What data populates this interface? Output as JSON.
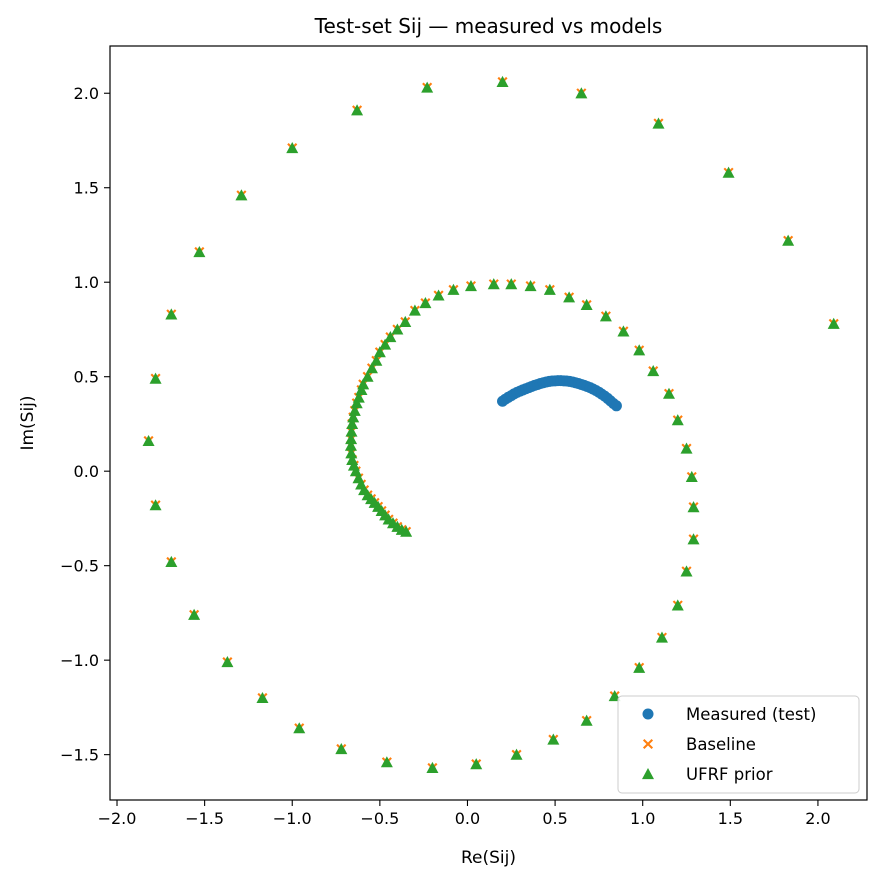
{
  "chart_data": {
    "type": "scatter",
    "title": "Test-set Sij — measured vs models",
    "xlabel": "Re(Sij)",
    "ylabel": "Im(Sij)",
    "xlim": [
      -2.04,
      2.28
    ],
    "ylim": [
      -1.74,
      2.25
    ],
    "xticks": [
      -2.0,
      -1.5,
      -1.0,
      -0.5,
      0.0,
      0.5,
      1.0,
      1.5,
      2.0
    ],
    "xtick_labels": [
      "−2.0",
      "−1.5",
      "−1.0",
      "−0.5",
      "0.0",
      "0.5",
      "1.0",
      "1.5",
      "2.0"
    ],
    "yticks": [
      -1.5,
      -1.0,
      -0.5,
      0.0,
      0.5,
      1.0,
      1.5,
      2.0
    ],
    "ytick_labels": [
      "−1.5",
      "−1.0",
      "−0.5",
      "0.0",
      "0.5",
      "1.0",
      "1.5",
      "2.0"
    ],
    "grid": false,
    "legend_position": "lower-right",
    "series": [
      {
        "name": "Measured (test)",
        "marker": "circle",
        "color": "#1f77b4",
        "points": [
          [
            0.2,
            0.37
          ],
          [
            0.216,
            0.381
          ],
          [
            0.233,
            0.391
          ],
          [
            0.25,
            0.4
          ],
          [
            0.266,
            0.409
          ],
          [
            0.283,
            0.417
          ],
          [
            0.3,
            0.424
          ],
          [
            0.316,
            0.43
          ],
          [
            0.333,
            0.436
          ],
          [
            0.35,
            0.442
          ],
          [
            0.366,
            0.448
          ],
          [
            0.383,
            0.454
          ],
          [
            0.4,
            0.459
          ],
          [
            0.416,
            0.464
          ],
          [
            0.433,
            0.468
          ],
          [
            0.45,
            0.472
          ],
          [
            0.466,
            0.475
          ],
          [
            0.483,
            0.477
          ],
          [
            0.5,
            0.478
          ],
          [
            0.516,
            0.479
          ],
          [
            0.533,
            0.479
          ],
          [
            0.55,
            0.478
          ],
          [
            0.566,
            0.477
          ],
          [
            0.583,
            0.475
          ],
          [
            0.6,
            0.472
          ],
          [
            0.616,
            0.468
          ],
          [
            0.633,
            0.464
          ],
          [
            0.65,
            0.459
          ],
          [
            0.666,
            0.454
          ],
          [
            0.683,
            0.448
          ],
          [
            0.7,
            0.442
          ],
          [
            0.716,
            0.435
          ],
          [
            0.733,
            0.427
          ],
          [
            0.75,
            0.418
          ],
          [
            0.766,
            0.408
          ],
          [
            0.783,
            0.397
          ],
          [
            0.8,
            0.385
          ],
          [
            0.816,
            0.372
          ],
          [
            0.833,
            0.358
          ],
          [
            0.85,
            0.346
          ]
        ]
      },
      {
        "name": "Baseline",
        "marker": "x",
        "color": "#ff7f0e",
        "points": [
          [
            -0.35,
            -0.32
          ],
          [
            -0.375,
            -0.31
          ],
          [
            -0.4,
            -0.294
          ],
          [
            -0.425,
            -0.275
          ],
          [
            -0.45,
            -0.255
          ],
          [
            -0.47,
            -0.233
          ],
          [
            -0.49,
            -0.21
          ],
          [
            -0.51,
            -0.188
          ],
          [
            -0.53,
            -0.167
          ],
          [
            -0.55,
            -0.147
          ],
          [
            -0.57,
            -0.127
          ],
          [
            -0.59,
            -0.1
          ],
          [
            -0.607,
            -0.07
          ],
          [
            -0.622,
            -0.037
          ],
          [
            -0.637,
            0.0
          ],
          [
            -0.648,
            0.03
          ],
          [
            -0.658,
            0.06
          ],
          [
            -0.663,
            0.095
          ],
          [
            -0.665,
            0.135
          ],
          [
            -0.664,
            0.17
          ],
          [
            -0.662,
            0.21
          ],
          [
            -0.658,
            0.25
          ],
          [
            -0.652,
            0.285
          ],
          [
            -0.643,
            0.32
          ],
          [
            -0.632,
            0.36
          ],
          [
            -0.62,
            0.39
          ],
          [
            -0.605,
            0.43
          ],
          [
            -0.595,
            0.46
          ],
          [
            -0.57,
            0.5
          ],
          [
            -0.545,
            0.545
          ],
          [
            -0.52,
            0.585
          ],
          [
            -0.5,
            0.63
          ],
          [
            -0.47,
            0.67
          ],
          [
            -0.44,
            0.71
          ],
          [
            -0.4,
            0.75
          ],
          [
            -0.355,
            0.79
          ],
          [
            -0.3,
            0.85
          ],
          [
            -0.24,
            0.89
          ],
          [
            -0.165,
            0.93
          ],
          [
            -0.08,
            0.96
          ],
          [
            0.02,
            0.98
          ],
          [
            0.15,
            0.99
          ],
          [
            0.25,
            0.99
          ],
          [
            0.36,
            0.98
          ],
          [
            0.47,
            0.96
          ],
          [
            0.58,
            0.92
          ],
          [
            0.68,
            0.88
          ],
          [
            0.79,
            0.82
          ],
          [
            0.89,
            0.74
          ],
          [
            0.98,
            0.64
          ],
          [
            1.06,
            0.53
          ],
          [
            1.15,
            0.41
          ],
          [
            1.2,
            0.27
          ],
          [
            1.25,
            0.12
          ],
          [
            1.28,
            -0.03
          ],
          [
            1.29,
            -0.19
          ],
          [
            1.29,
            -0.36
          ],
          [
            1.25,
            -0.53
          ],
          [
            1.2,
            -0.71
          ],
          [
            1.11,
            -0.88
          ],
          [
            0.98,
            -1.04
          ],
          [
            0.84,
            -1.19
          ],
          [
            0.68,
            -1.32
          ],
          [
            0.49,
            -1.42
          ],
          [
            0.28,
            -1.5
          ],
          [
            0.05,
            -1.55
          ],
          [
            -0.2,
            -1.57
          ],
          [
            -0.46,
            -1.54
          ],
          [
            -0.72,
            -1.47
          ],
          [
            -0.96,
            -1.36
          ],
          [
            -1.17,
            -1.2
          ],
          [
            -1.37,
            -1.01
          ],
          [
            -1.56,
            -0.76
          ],
          [
            -1.69,
            -0.48
          ],
          [
            -1.78,
            -0.18
          ],
          [
            -1.82,
            0.16
          ],
          [
            -1.78,
            0.49
          ],
          [
            -1.69,
            0.83
          ],
          [
            -1.53,
            1.16
          ],
          [
            -1.29,
            1.46
          ],
          [
            -1.0,
            1.71
          ],
          [
            -0.63,
            1.91
          ],
          [
            -0.23,
            2.03
          ],
          [
            0.2,
            2.06
          ],
          [
            0.65,
            2.0
          ],
          [
            1.09,
            1.84
          ],
          [
            1.49,
            1.58
          ],
          [
            1.83,
            1.22
          ],
          [
            2.09,
            0.78
          ]
        ]
      },
      {
        "name": "UFRF prior",
        "marker": "triangle",
        "color": "#2ca02c",
        "points": [
          [
            -0.35,
            -0.32
          ],
          [
            -0.375,
            -0.31
          ],
          [
            -0.4,
            -0.294
          ],
          [
            -0.425,
            -0.275
          ],
          [
            -0.45,
            -0.255
          ],
          [
            -0.47,
            -0.233
          ],
          [
            -0.49,
            -0.21
          ],
          [
            -0.51,
            -0.188
          ],
          [
            -0.53,
            -0.167
          ],
          [
            -0.55,
            -0.147
          ],
          [
            -0.57,
            -0.127
          ],
          [
            -0.59,
            -0.1
          ],
          [
            -0.607,
            -0.07
          ],
          [
            -0.622,
            -0.037
          ],
          [
            -0.637,
            0.0
          ],
          [
            -0.648,
            0.03
          ],
          [
            -0.658,
            0.06
          ],
          [
            -0.663,
            0.095
          ],
          [
            -0.665,
            0.135
          ],
          [
            -0.664,
            0.17
          ],
          [
            -0.662,
            0.21
          ],
          [
            -0.658,
            0.25
          ],
          [
            -0.652,
            0.285
          ],
          [
            -0.643,
            0.32
          ],
          [
            -0.632,
            0.36
          ],
          [
            -0.62,
            0.39
          ],
          [
            -0.605,
            0.43
          ],
          [
            -0.595,
            0.46
          ],
          [
            -0.57,
            0.5
          ],
          [
            -0.545,
            0.545
          ],
          [
            -0.52,
            0.585
          ],
          [
            -0.5,
            0.63
          ],
          [
            -0.47,
            0.67
          ],
          [
            -0.44,
            0.71
          ],
          [
            -0.4,
            0.75
          ],
          [
            -0.355,
            0.79
          ],
          [
            -0.3,
            0.85
          ],
          [
            -0.24,
            0.89
          ],
          [
            -0.165,
            0.93
          ],
          [
            -0.08,
            0.96
          ],
          [
            0.02,
            0.98
          ],
          [
            0.15,
            0.99
          ],
          [
            0.25,
            0.99
          ],
          [
            0.36,
            0.98
          ],
          [
            0.47,
            0.96
          ],
          [
            0.58,
            0.92
          ],
          [
            0.68,
            0.88
          ],
          [
            0.79,
            0.82
          ],
          [
            0.89,
            0.74
          ],
          [
            0.98,
            0.64
          ],
          [
            1.06,
            0.53
          ],
          [
            1.15,
            0.41
          ],
          [
            1.2,
            0.27
          ],
          [
            1.25,
            0.12
          ],
          [
            1.28,
            -0.03
          ],
          [
            1.29,
            -0.19
          ],
          [
            1.29,
            -0.36
          ],
          [
            1.25,
            -0.53
          ],
          [
            1.2,
            -0.71
          ],
          [
            1.11,
            -0.88
          ],
          [
            0.98,
            -1.04
          ],
          [
            0.84,
            -1.19
          ],
          [
            0.68,
            -1.32
          ],
          [
            0.49,
            -1.42
          ],
          [
            0.28,
            -1.5
          ],
          [
            0.05,
            -1.55
          ],
          [
            -0.2,
            -1.57
          ],
          [
            -0.46,
            -1.54
          ],
          [
            -0.72,
            -1.47
          ],
          [
            -0.96,
            -1.36
          ],
          [
            -1.17,
            -1.2
          ],
          [
            -1.37,
            -1.01
          ],
          [
            -1.56,
            -0.76
          ],
          [
            -1.69,
            -0.48
          ],
          [
            -1.78,
            -0.18
          ],
          [
            -1.82,
            0.16
          ],
          [
            -1.78,
            0.49
          ],
          [
            -1.69,
            0.83
          ],
          [
            -1.53,
            1.16
          ],
          [
            -1.29,
            1.46
          ],
          [
            -1.0,
            1.71
          ],
          [
            -0.63,
            1.91
          ],
          [
            -0.23,
            2.03
          ],
          [
            0.2,
            2.06
          ],
          [
            0.65,
            2.0
          ],
          [
            1.09,
            1.84
          ],
          [
            1.49,
            1.58
          ],
          [
            1.83,
            1.22
          ],
          [
            2.09,
            0.78
          ]
        ]
      }
    ]
  }
}
